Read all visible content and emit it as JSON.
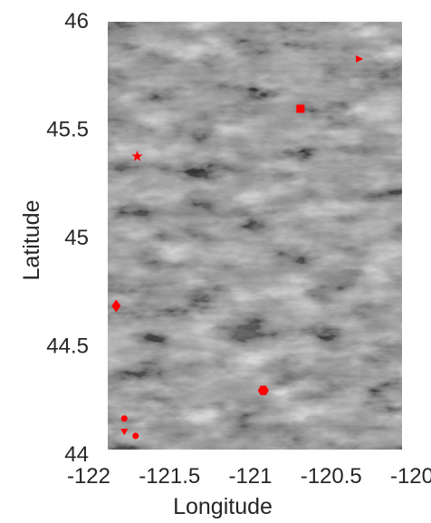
{
  "chart_data": {
    "type": "scatter",
    "title": "",
    "xlabel": "Longitude",
    "ylabel": "Latitude",
    "xlim": [
      -122,
      -120
    ],
    "ylim": [
      44,
      46
    ],
    "xticks": [
      -122,
      -121.5,
      -121,
      -120.5,
      -120
    ],
    "xtick_labels": [
      "-122",
      "-121.5",
      "-121",
      "-120.5",
      "-120"
    ],
    "yticks": [
      44,
      44.5,
      45,
      45.5,
      46
    ],
    "ytick_labels": [
      "44",
      "44.5",
      "45",
      "45.5",
      "46"
    ],
    "grid": false,
    "legend": "none",
    "background": "grayscale relief image",
    "marker_color": "#ff0000",
    "points": [
      {
        "x": -120.33,
        "y": 45.82,
        "marker": "triangle-right"
      },
      {
        "x": -120.69,
        "y": 45.59,
        "marker": "square"
      },
      {
        "x": -121.7,
        "y": 45.37,
        "marker": "star"
      },
      {
        "x": -121.83,
        "y": 44.68,
        "marker": "diamond"
      },
      {
        "x": -120.92,
        "y": 44.29,
        "marker": "hexagon"
      },
      {
        "x": -121.78,
        "y": 44.16,
        "marker": "circle"
      },
      {
        "x": -121.78,
        "y": 44.1,
        "marker": "triangle-down"
      },
      {
        "x": -121.71,
        "y": 44.08,
        "marker": "circle"
      }
    ]
  }
}
